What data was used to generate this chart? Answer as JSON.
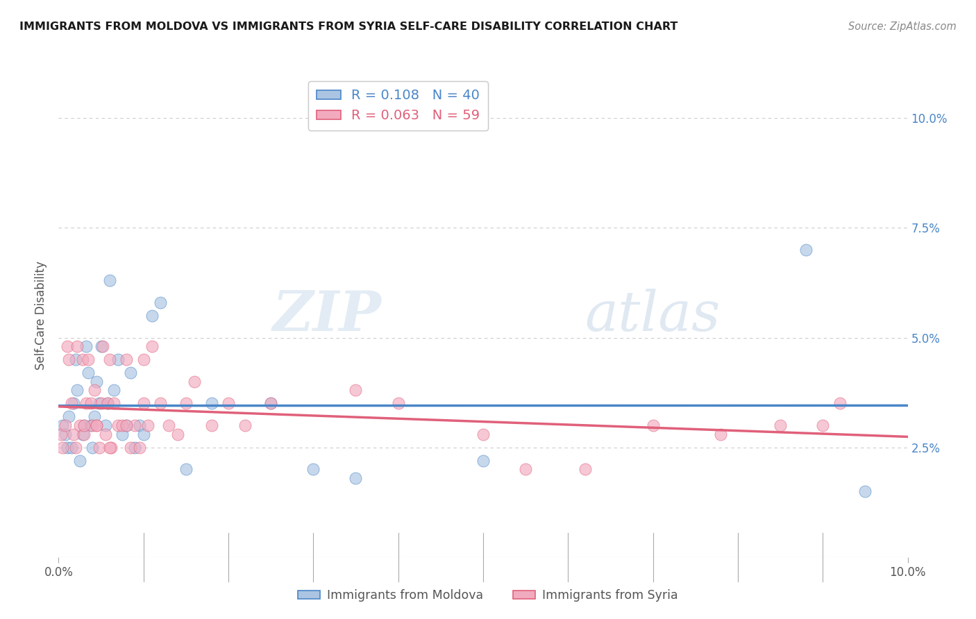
{
  "title": "IMMIGRANTS FROM MOLDOVA VS IMMIGRANTS FROM SYRIA SELF-CARE DISABILITY CORRELATION CHART",
  "source": "Source: ZipAtlas.com",
  "ylabel": "Self-Care Disability",
  "legend_moldova": "Immigrants from Moldova",
  "legend_syria": "Immigrants from Syria",
  "r_moldova": "0.108",
  "n_moldova": "40",
  "r_syria": "0.063",
  "n_syria": "59",
  "xlim": [
    0.0,
    10.0
  ],
  "ylim": [
    0.0,
    11.0
  ],
  "yticks": [
    2.5,
    5.0,
    7.5,
    10.0
  ],
  "color_moldova": "#aac4e2",
  "color_syria": "#f2aabf",
  "line_color_moldova": "#4a86c8",
  "line_color_syria": "#e0607a",
  "bg_color": "#ffffff",
  "watermark_zip": "ZIP",
  "watermark_atlas": "atlas",
  "moldova_x": [
    0.05,
    0.08,
    0.1,
    0.12,
    0.15,
    0.18,
    0.2,
    0.22,
    0.25,
    0.28,
    0.3,
    0.32,
    0.35,
    0.38,
    0.4,
    0.42,
    0.45,
    0.48,
    0.5,
    0.55,
    0.58,
    0.6,
    0.65,
    0.7,
    0.75,
    0.8,
    0.85,
    0.9,
    0.95,
    1.0,
    1.1,
    1.2,
    1.5,
    1.8,
    2.5,
    3.0,
    3.5,
    5.0,
    8.8,
    9.5
  ],
  "moldova_y": [
    3.0,
    2.8,
    2.5,
    3.2,
    2.5,
    3.5,
    4.5,
    3.8,
    2.2,
    2.8,
    3.0,
    4.8,
    4.2,
    3.0,
    2.5,
    3.2,
    4.0,
    3.5,
    4.8,
    3.0,
    3.5,
    6.3,
    3.8,
    4.5,
    2.8,
    3.0,
    4.2,
    2.5,
    3.0,
    2.8,
    5.5,
    5.8,
    2.0,
    3.5,
    3.5,
    2.0,
    1.8,
    2.2,
    7.0,
    1.5
  ],
  "syria_x": [
    0.03,
    0.05,
    0.08,
    0.1,
    0.12,
    0.15,
    0.18,
    0.2,
    0.22,
    0.25,
    0.28,
    0.3,
    0.32,
    0.35,
    0.38,
    0.4,
    0.42,
    0.45,
    0.48,
    0.5,
    0.52,
    0.55,
    0.58,
    0.6,
    0.62,
    0.65,
    0.7,
    0.75,
    0.8,
    0.85,
    0.9,
    0.95,
    1.0,
    1.05,
    1.1,
    1.2,
    1.3,
    1.4,
    1.5,
    1.6,
    1.8,
    2.0,
    2.2,
    2.5,
    3.5,
    4.0,
    5.0,
    5.5,
    6.2,
    7.0,
    7.8,
    8.5,
    9.0,
    9.2,
    0.3,
    0.45,
    0.6,
    0.8,
    1.0
  ],
  "syria_y": [
    2.8,
    2.5,
    3.0,
    4.8,
    4.5,
    3.5,
    2.8,
    2.5,
    4.8,
    3.0,
    4.5,
    2.8,
    3.5,
    4.5,
    3.5,
    3.0,
    3.8,
    3.0,
    2.5,
    3.5,
    4.8,
    2.8,
    3.5,
    4.5,
    2.5,
    3.5,
    3.0,
    3.0,
    4.5,
    2.5,
    3.0,
    2.5,
    4.5,
    3.0,
    4.8,
    3.5,
    3.0,
    2.8,
    3.5,
    4.0,
    3.0,
    3.5,
    3.0,
    3.5,
    3.8,
    3.5,
    2.8,
    2.0,
    2.0,
    3.0,
    2.8,
    3.0,
    3.0,
    3.5,
    3.0,
    3.0,
    2.5,
    3.0,
    3.5
  ]
}
